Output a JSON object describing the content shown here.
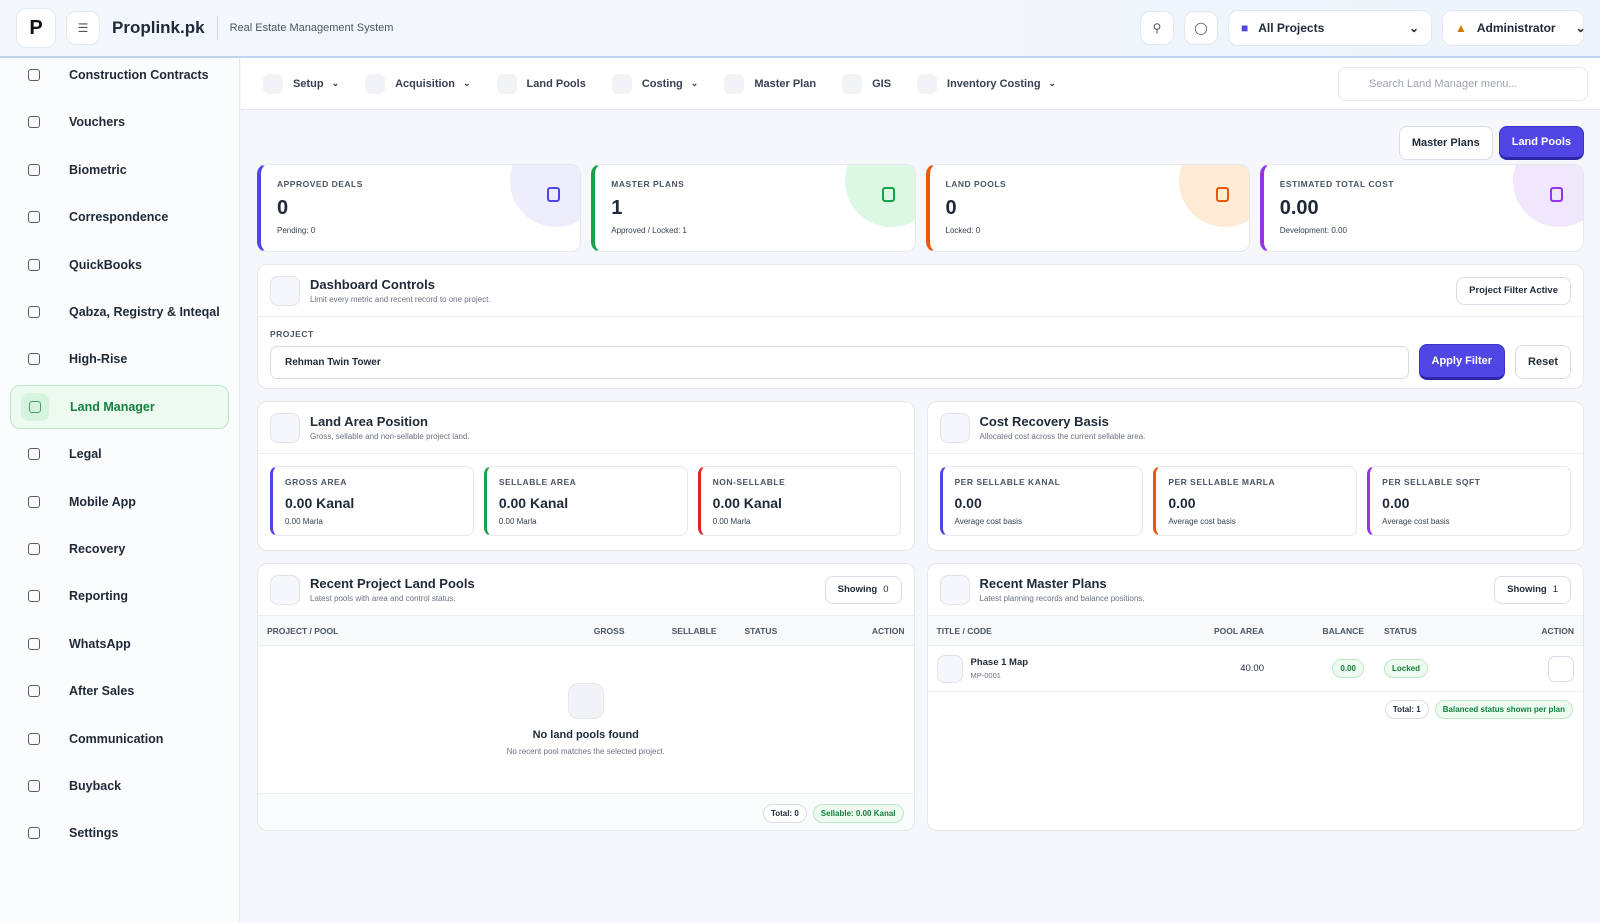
{
  "header": {
    "app_name": "Proplink.pk",
    "subtitle": "Real Estate Management System",
    "project_select": "All Projects",
    "user": "Administrator"
  },
  "sidebar": {
    "items": [
      "Construction Contracts",
      "Vouchers",
      "Biometric",
      "Correspondence",
      "QuickBooks",
      "Qabza, Registry & Inteqal",
      "High-Rise",
      "Land Manager",
      "Legal",
      "Mobile App",
      "Recovery",
      "Reporting",
      "WhatsApp",
      "After Sales",
      "Communication",
      "Buyback",
      "Settings"
    ],
    "active": "Land Manager"
  },
  "topnav": {
    "items": [
      "Setup",
      "Acquisition",
      "Land Pools",
      "Costing",
      "Master Plan",
      "GIS",
      "Inventory Costing"
    ],
    "search_placeholder": "Search Land Manager menu..."
  },
  "actions": [
    "Master Plans",
    "Land Pools"
  ],
  "stats": [
    {
      "label": "APPROVED DEALS",
      "value": 0,
      "sub": "Pending: 0"
    },
    {
      "label": "MASTER PLANS",
      "value": 1,
      "sub": "Approved / Locked: 1"
    },
    {
      "label": "LAND POOLS",
      "value": 0,
      "sub": "Locked: 0"
    },
    {
      "label": "ESTIMATED TOTAL COST",
      "value": "0.00",
      "sub": "Development: 0.00"
    }
  ],
  "controls": {
    "title": "Dashboard Controls",
    "subtitle": "Limit every metric and recent record to one project.",
    "badge": "Project Filter Active",
    "field_label": "PROJECT",
    "field_value": "Rehman Twin Tower",
    "apply": "Apply Filter",
    "reset": "Reset"
  },
  "land_area": {
    "title": "Land Area Position",
    "subtitle": "Gross, sellable and non-sellable project land.",
    "cards": [
      {
        "label": "GROSS AREA",
        "value": "0.00 Kanal",
        "sub": "0.00 Marla"
      },
      {
        "label": "SELLABLE AREA",
        "value": "0.00 Kanal",
        "sub": "0.00 Marla"
      },
      {
        "label": "NON-SELLABLE",
        "value": "0.00 Kanal",
        "sub": "0.00 Marla"
      }
    ]
  },
  "cost_recovery": {
    "title": "Cost Recovery Basis",
    "subtitle": "Allocated cost across the current sellable area.",
    "cards": [
      {
        "label": "PER SELLABLE KANAL",
        "value": "0.00",
        "sub": "Average cost basis"
      },
      {
        "label": "PER SELLABLE MARLA",
        "value": "0.00",
        "sub": "Average cost basis"
      },
      {
        "label": "PER SELLABLE SQFT",
        "value": "0.00",
        "sub": "Average cost basis"
      }
    ]
  },
  "land_pools": {
    "title": "Recent Project Land Pools",
    "subtitle": "Latest pools with area and control status.",
    "showing": "Showing",
    "count": 0,
    "columns": [
      "PROJECT / POOL",
      "GROSS",
      "SELLABLE",
      "STATUS",
      "ACTION"
    ],
    "empty_title": "No land pools found",
    "empty_subtitle": "No recent pool matches the selected project.",
    "total": "Total: 0",
    "sellable": "Sellable: 0.00 Kanal"
  },
  "master_plans": {
    "title": "Recent Master Plans",
    "subtitle": "Latest planning records and balance positions.",
    "showing": "Showing",
    "count": 1,
    "columns": [
      "TITLE / CODE",
      "POOL AREA",
      "BALANCE",
      "STATUS",
      "ACTION"
    ],
    "rows": [
      {
        "title": "Phase 1 Map",
        "code": "MP-0001",
        "pool_area": "40.00",
        "balance": "0.00",
        "status": "Locked"
      }
    ],
    "total": "Total: 1",
    "note": "Balanced status shown per plan"
  }
}
